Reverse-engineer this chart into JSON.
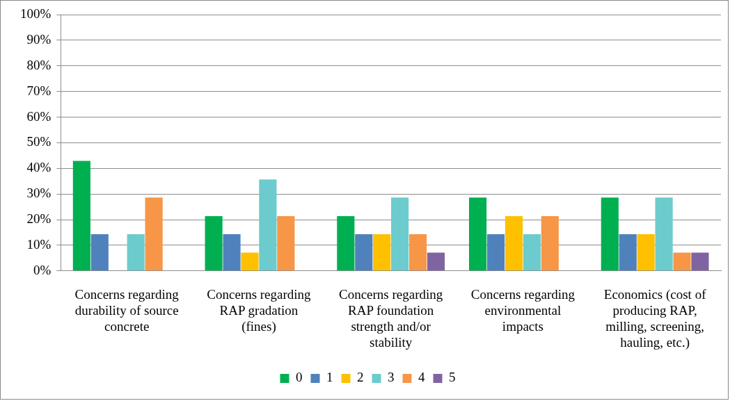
{
  "chart_data": {
    "type": "bar",
    "categories": [
      "Concerns regarding durability of source concrete",
      "Concerns regarding RAP gradation (fines)",
      "Concerns regarding RAP foundation strength and/or stability",
      "Concerns regarding environmental impacts",
      "Economics (cost of producing RAP, milling, screening, hauling, etc.)"
    ],
    "series": [
      {
        "name": "0",
        "color": "#00b050",
        "values": [
          42.9,
          21.4,
          21.4,
          28.6,
          28.6
        ]
      },
      {
        "name": "1",
        "color": "#4f81bd",
        "values": [
          14.3,
          14.3,
          14.3,
          14.3,
          14.3
        ]
      },
      {
        "name": "2",
        "color": "#ffc000",
        "values": [
          0,
          7.1,
          14.3,
          21.4,
          14.3
        ]
      },
      {
        "name": "3",
        "color": "#6ccbcc",
        "values": [
          14.3,
          35.7,
          28.6,
          14.3,
          28.6
        ]
      },
      {
        "name": "4",
        "color": "#f79646",
        "values": [
          28.6,
          21.4,
          14.3,
          21.4,
          7.1
        ]
      },
      {
        "name": "5",
        "color": "#8064a2",
        "values": [
          0,
          0,
          7.1,
          0,
          7.1
        ]
      }
    ],
    "ylim": [
      0,
      100
    ],
    "yticks": [
      {
        "value": 0,
        "label": "0%"
      },
      {
        "value": 10,
        "label": "10%"
      },
      {
        "value": 20,
        "label": "20%"
      },
      {
        "value": 30,
        "label": "30%"
      },
      {
        "value": 40,
        "label": "40%"
      },
      {
        "value": 50,
        "label": "50%"
      },
      {
        "value": 60,
        "label": "60%"
      },
      {
        "value": 70,
        "label": "70%"
      },
      {
        "value": 80,
        "label": "80%"
      },
      {
        "value": 90,
        "label": "90%"
      },
      {
        "value": 100,
        "label": "100%"
      }
    ],
    "grid": "y",
    "legend": "bottom"
  }
}
